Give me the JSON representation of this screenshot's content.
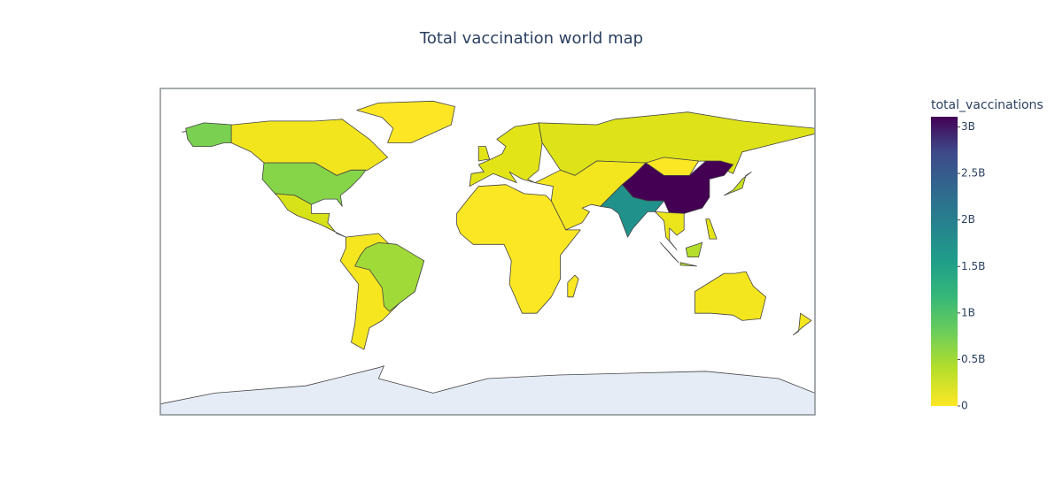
{
  "title": "Total vaccination world map",
  "colorbar": {
    "title": "total_vaccinations",
    "range": [
      0,
      3110000000
    ],
    "ticks": [
      0,
      {
        "value": 500000000,
        "label": "0.5B"
      },
      {
        "value": 1000000000,
        "label": "1B"
      },
      {
        "value": 1500000000,
        "label": "1.5B"
      },
      {
        "value": 2000000000,
        "label": "2B"
      },
      {
        "value": 2500000000,
        "label": "2.5B"
      },
      {
        "value": 3000000000,
        "label": "3B"
      }
    ]
  }
}
